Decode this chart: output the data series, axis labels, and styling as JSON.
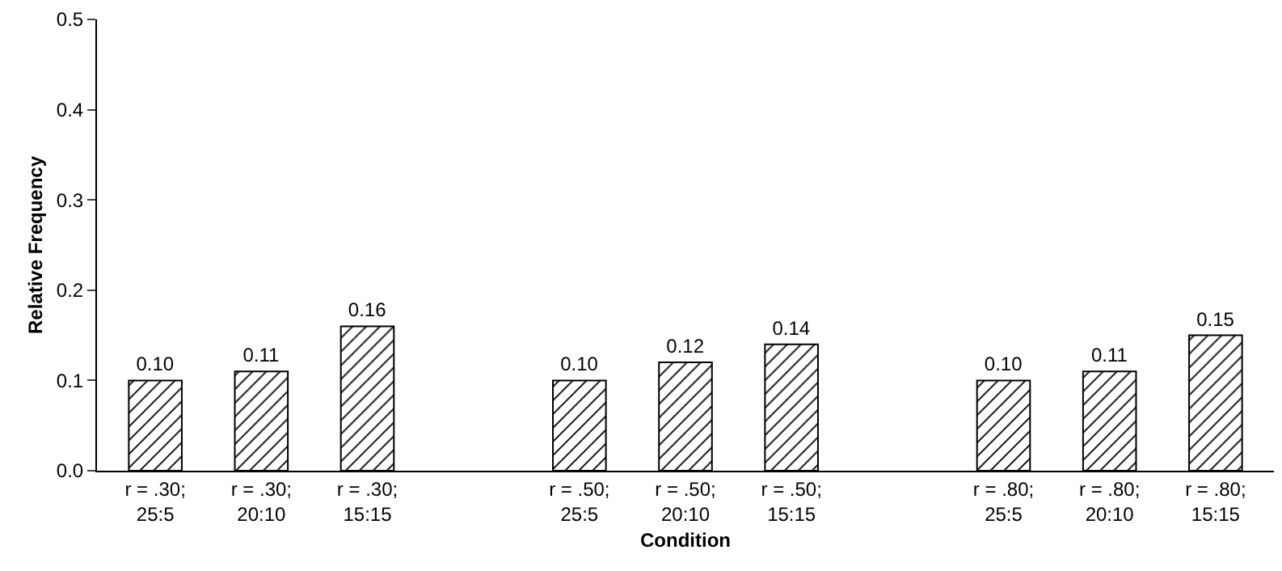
{
  "chart_data": {
    "type": "bar",
    "xlabel": "Condition",
    "ylabel": "Relative Frequency",
    "categories": [
      "r = .30;\n25:5",
      "r = .30;\n20:10",
      "r = .30;\n15:15",
      null,
      "r = .50;\n25:5",
      "r = .50;\n20:10",
      "r = .50;\n15:15",
      null,
      "r = .80;\n25:5",
      "r = .80;\n20:10",
      "r = .80;\n15:15"
    ],
    "values": [
      0.1,
      0.11,
      0.16,
      null,
      0.1,
      0.12,
      0.14,
      null,
      0.1,
      0.11,
      0.15
    ],
    "value_labels": [
      "0.10",
      "0.11",
      "0.16",
      null,
      "0.10",
      "0.12",
      "0.14",
      null,
      "0.10",
      "0.11",
      "0.15"
    ],
    "color": "#000000",
    "ylim": [
      0,
      0.5
    ],
    "yticks": [
      {
        "value": 0,
        "label": "0.0"
      },
      0.1,
      0.2,
      0.3,
      0.4,
      0.5
    ],
    "grid": false,
    "legend": false
  }
}
